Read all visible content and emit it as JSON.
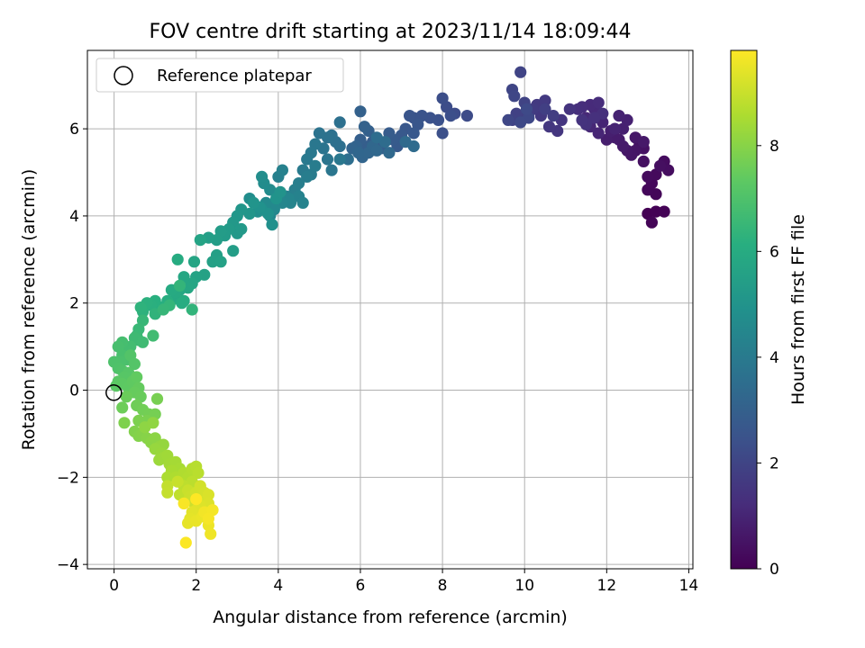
{
  "chart_data": {
    "type": "scatter",
    "title": "FOV centre drift starting at 2023/11/14 18:09:44",
    "xlabel": "Angular distance from reference (arcmin)",
    "ylabel": "Rotation from reference (arcmin)",
    "xlim": [
      -0.65,
      14.1
    ],
    "ylim": [
      -4.1,
      7.8
    ],
    "x_ticks": [
      0,
      2,
      4,
      6,
      8,
      10,
      12,
      14
    ],
    "y_ticks": [
      -4,
      -2,
      0,
      2,
      4,
      6
    ],
    "grid": true,
    "legend": {
      "position": "top-left",
      "entries": [
        "Reference platepar"
      ]
    },
    "reference_point": {
      "x": 0,
      "y": 0,
      "marker": "open-circle"
    },
    "colorbar": {
      "label": "Hours from first FF file",
      "colormap": "viridis",
      "range": [
        0,
        9.8
      ],
      "ticks": [
        0,
        2,
        4,
        6,
        8
      ]
    },
    "series": [
      {
        "points": [
          [
            13.0,
            4.05
          ],
          [
            13.2,
            4.1
          ],
          [
            13.4,
            4.1
          ],
          [
            13.1,
            3.85
          ],
          [
            13.2,
            4.5
          ],
          [
            13.0,
            4.6
          ],
          [
            13.1,
            4.75
          ],
          [
            13.2,
            4.95
          ],
          [
            13.0,
            4.9
          ],
          [
            13.4,
            5.25
          ],
          [
            13.5,
            5.05
          ],
          [
            13.3,
            5.15
          ],
          [
            12.9,
            5.25
          ],
          [
            12.9,
            5.55
          ],
          [
            12.8,
            5.65
          ],
          [
            12.7,
            5.5
          ],
          [
            12.6,
            5.4
          ],
          [
            12.5,
            5.5
          ],
          [
            12.7,
            5.8
          ],
          [
            12.9,
            5.7
          ],
          [
            12.4,
            5.6
          ],
          [
            12.3,
            5.75
          ],
          [
            12.2,
            5.8
          ],
          [
            12.0,
            5.75
          ],
          [
            12.1,
            5.95
          ],
          [
            12.4,
            6.0
          ],
          [
            12.5,
            6.2
          ],
          [
            12.3,
            6.3
          ],
          [
            12.2,
            6.0
          ],
          [
            11.9,
            6.15
          ],
          [
            11.8,
            5.9
          ],
          [
            11.6,
            6.05
          ],
          [
            11.5,
            6.25
          ],
          [
            11.7,
            6.45
          ],
          [
            11.6,
            6.55
          ],
          [
            11.8,
            6.6
          ],
          [
            11.4,
            6.5
          ],
          [
            11.3,
            6.45
          ],
          [
            11.9,
            6.35
          ],
          [
            11.7,
            6.25
          ],
          [
            11.5,
            6.1
          ],
          [
            11.4,
            6.2
          ],
          [
            11.1,
            6.45
          ],
          [
            10.9,
            6.2
          ],
          [
            10.8,
            5.95
          ],
          [
            10.6,
            6.05
          ],
          [
            10.4,
            6.3
          ],
          [
            10.3,
            6.55
          ],
          [
            10.5,
            6.65
          ],
          [
            10.2,
            6.45
          ],
          [
            10.1,
            6.35
          ],
          [
            10.7,
            6.3
          ],
          [
            10.5,
            6.45
          ]
        ]
      },
      {
        "points": [
          [
            10.0,
            6.25
          ],
          [
            9.8,
            6.35
          ],
          [
            9.7,
            6.2
          ],
          [
            10.0,
            6.6
          ],
          [
            9.9,
            7.3
          ],
          [
            9.7,
            6.9
          ],
          [
            9.75,
            6.75
          ],
          [
            9.6,
            6.2
          ],
          [
            10.1,
            6.25
          ],
          [
            9.9,
            6.15
          ],
          [
            10.05,
            6.45
          ],
          [
            8.6,
            6.3
          ],
          [
            8.3,
            6.35
          ],
          [
            8.1,
            6.5
          ],
          [
            8.0,
            6.7
          ],
          [
            8.2,
            6.3
          ],
          [
            8.0,
            5.9
          ],
          [
            7.9,
            6.2
          ],
          [
            7.7,
            6.25
          ],
          [
            7.5,
            6.3
          ],
          [
            7.3,
            6.25
          ],
          [
            7.2,
            6.3
          ],
          [
            7.4,
            6.1
          ],
          [
            7.1,
            6.0
          ],
          [
            7.3,
            5.9
          ],
          [
            7.0,
            5.85
          ],
          [
            6.9,
            5.6
          ],
          [
            6.8,
            5.75
          ],
          [
            6.7,
            5.9
          ],
          [
            6.5,
            5.55
          ],
          [
            6.3,
            5.7
          ],
          [
            6.1,
            5.6
          ],
          [
            6.0,
            5.75
          ],
          [
            6.2,
            5.95
          ],
          [
            6.0,
            6.4
          ],
          [
            6.1,
            6.05
          ],
          [
            5.9,
            5.6
          ],
          [
            5.8,
            5.55
          ],
          [
            6.05,
            5.35
          ],
          [
            6.2,
            5.45
          ],
          [
            5.95,
            5.45
          ],
          [
            6.3,
            5.6
          ],
          [
            6.4,
            5.5
          ],
          [
            6.7,
            5.45
          ],
          [
            7.1,
            5.7
          ],
          [
            7.3,
            5.6
          ],
          [
            6.6,
            5.7
          ],
          [
            6.4,
            5.8
          ],
          [
            5.7,
            5.3
          ],
          [
            5.5,
            5.6
          ]
        ]
      },
      {
        "points": [
          [
            5.4,
            5.7
          ],
          [
            5.5,
            6.15
          ],
          [
            5.3,
            5.85
          ],
          [
            5.2,
            5.8
          ],
          [
            5.0,
            5.9
          ],
          [
            5.1,
            5.55
          ],
          [
            5.2,
            5.3
          ],
          [
            5.3,
            5.05
          ],
          [
            5.5,
            5.3
          ],
          [
            4.9,
            5.65
          ],
          [
            4.8,
            5.45
          ],
          [
            4.7,
            5.3
          ],
          [
            4.6,
            5.05
          ],
          [
            4.8,
            4.95
          ],
          [
            4.9,
            5.15
          ],
          [
            4.7,
            4.9
          ],
          [
            4.5,
            4.75
          ],
          [
            4.4,
            4.6
          ],
          [
            4.2,
            4.45
          ],
          [
            4.0,
            4.9
          ],
          [
            4.1,
            5.05
          ],
          [
            4.5,
            4.45
          ],
          [
            4.6,
            4.3
          ],
          [
            4.3,
            4.3
          ],
          [
            4.25,
            4.4
          ],
          [
            4.1,
            4.3
          ],
          [
            3.9,
            4.15
          ],
          [
            3.8,
            4.0
          ],
          [
            3.75,
            4.2
          ],
          [
            3.9,
            4.2
          ],
          [
            3.7,
            4.3
          ],
          [
            3.8,
            4.6
          ],
          [
            3.65,
            4.75
          ],
          [
            3.6,
            4.9
          ],
          [
            3.3,
            4.4
          ],
          [
            3.5,
            4.1
          ],
          [
            3.6,
            4.15
          ],
          [
            3.85,
            3.8
          ],
          [
            3.75,
            4.05
          ],
          [
            3.55,
            4.2
          ],
          [
            3.95,
            4.4
          ],
          [
            4.05,
            4.55
          ]
        ]
      },
      {
        "points": [
          [
            3.4,
            4.3
          ],
          [
            3.3,
            4.05
          ],
          [
            3.1,
            4.15
          ],
          [
            3.0,
            4.0
          ],
          [
            2.9,
            3.85
          ],
          [
            3.0,
            3.6
          ],
          [
            3.1,
            3.7
          ],
          [
            2.8,
            3.7
          ],
          [
            2.7,
            3.55
          ],
          [
            2.6,
            3.65
          ],
          [
            2.9,
            3.2
          ],
          [
            2.5,
            3.45
          ],
          [
            2.3,
            3.5
          ],
          [
            2.5,
            3.1
          ],
          [
            2.4,
            2.95
          ],
          [
            2.6,
            2.95
          ],
          [
            2.2,
            2.65
          ],
          [
            2.0,
            2.6
          ],
          [
            2.1,
            3.45
          ],
          [
            1.95,
            2.95
          ],
          [
            1.9,
            2.45
          ],
          [
            1.7,
            2.6
          ],
          [
            1.8,
            2.35
          ],
          [
            1.6,
            2.3
          ],
          [
            1.5,
            2.1
          ],
          [
            1.5,
            2.25
          ],
          [
            1.4,
            2.3
          ],
          [
            1.55,
            3.0
          ],
          [
            1.7,
            2.05
          ],
          [
            1.65,
            2.0
          ],
          [
            1.3,
            2.05
          ],
          [
            1.15,
            1.9
          ],
          [
            1.0,
            2.05
          ],
          [
            0.9,
            1.95
          ],
          [
            0.8,
            2.0
          ],
          [
            0.7,
            1.8
          ],
          [
            0.65,
            1.9
          ],
          [
            1.0,
            1.75
          ],
          [
            1.9,
            1.85
          ],
          [
            1.6,
            2.4
          ],
          [
            1.35,
            1.95
          ],
          [
            1.2,
            1.85
          ]
        ]
      },
      {
        "points": [
          [
            0.7,
            1.6
          ],
          [
            0.6,
            1.4
          ],
          [
            0.55,
            1.25
          ],
          [
            0.6,
            1.15
          ],
          [
            0.5,
            1.2
          ],
          [
            0.7,
            1.1
          ],
          [
            0.95,
            1.25
          ],
          [
            0.4,
            1.0
          ],
          [
            0.3,
            0.9
          ],
          [
            0.2,
            1.1
          ],
          [
            0.1,
            1.0
          ],
          [
            0.2,
            0.8
          ],
          [
            0.3,
            0.7
          ],
          [
            0.15,
            0.65
          ],
          [
            0.0,
            0.65
          ],
          [
            0.1,
            0.5
          ],
          [
            0.2,
            0.45
          ],
          [
            0.4,
            0.8
          ],
          [
            0.5,
            0.6
          ],
          [
            0.35,
            0.4
          ],
          [
            0.25,
            0.3
          ],
          [
            0.1,
            0.2
          ],
          [
            0.05,
            0.1
          ],
          [
            0.2,
            0.15
          ],
          [
            0.35,
            0.05
          ],
          [
            0.45,
            0.2
          ],
          [
            0.55,
            0.3
          ],
          [
            0.6,
            0.05
          ],
          [
            0.5,
            -0.05
          ],
          [
            0.65,
            -0.15
          ],
          [
            0.3,
            -0.15
          ],
          [
            0.2,
            -0.4
          ],
          [
            0.55,
            -0.35
          ],
          [
            0.7,
            -0.45
          ],
          [
            0.85,
            -0.55
          ],
          [
            1.0,
            -0.55
          ],
          [
            1.05,
            -0.2
          ],
          [
            0.8,
            -0.7
          ],
          [
            0.6,
            -0.7
          ],
          [
            0.25,
            -0.75
          ],
          [
            0.5,
            -0.95
          ],
          [
            0.6,
            -1.05
          ],
          [
            0.7,
            -1.0
          ],
          [
            0.8,
            -1.1
          ],
          [
            0.9,
            -1.2
          ],
          [
            1.0,
            -1.1
          ],
          [
            0.75,
            -0.85
          ],
          [
            0.95,
            -0.75
          ]
        ]
      },
      {
        "points": [
          [
            1.1,
            -1.3
          ],
          [
            1.2,
            -1.25
          ],
          [
            1.0,
            -1.35
          ],
          [
            1.15,
            -1.45
          ],
          [
            1.1,
            -1.6
          ],
          [
            1.2,
            -1.55
          ],
          [
            1.3,
            -1.5
          ],
          [
            1.35,
            -1.7
          ],
          [
            1.5,
            -1.65
          ],
          [
            1.6,
            -1.8
          ],
          [
            1.4,
            -1.85
          ],
          [
            1.3,
            -2.0
          ],
          [
            1.5,
            -2.0
          ],
          [
            1.7,
            -1.9
          ],
          [
            1.8,
            -2.0
          ],
          [
            1.9,
            -1.8
          ],
          [
            2.0,
            -1.75
          ],
          [
            2.05,
            -1.9
          ],
          [
            1.9,
            -2.1
          ],
          [
            1.7,
            -2.2
          ],
          [
            1.6,
            -2.4
          ],
          [
            1.3,
            -2.2
          ],
          [
            1.3,
            -2.35
          ],
          [
            1.55,
            -2.1
          ],
          [
            1.8,
            -2.3
          ],
          [
            1.85,
            -2.45
          ],
          [
            1.9,
            -2.55
          ],
          [
            2.0,
            -2.35
          ],
          [
            2.1,
            -2.2
          ],
          [
            2.2,
            -2.35
          ],
          [
            2.2,
            -2.55
          ],
          [
            2.3,
            -2.4
          ],
          [
            2.3,
            -2.6
          ],
          [
            2.1,
            -2.65
          ],
          [
            2.0,
            -2.75
          ],
          [
            1.9,
            -2.8
          ],
          [
            1.85,
            -2.95
          ],
          [
            1.8,
            -3.05
          ],
          [
            2.0,
            -3.0
          ],
          [
            2.15,
            -2.9
          ],
          [
            2.3,
            -3.1
          ],
          [
            2.35,
            -3.3
          ],
          [
            2.2,
            -2.8
          ],
          [
            2.4,
            -2.75
          ],
          [
            2.3,
            -2.95
          ],
          [
            1.7,
            -2.6
          ],
          [
            1.75,
            -3.5
          ],
          [
            2.0,
            -2.5
          ]
        ]
      }
    ]
  }
}
